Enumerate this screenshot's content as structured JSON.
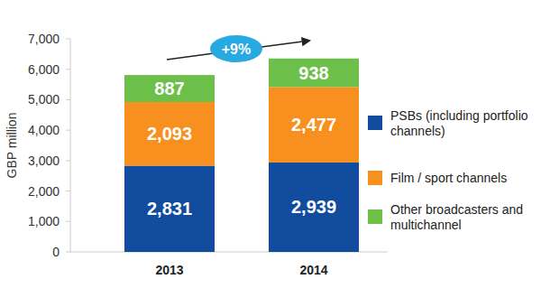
{
  "chart_data": {
    "type": "bar",
    "stacked": true,
    "data_labels": true,
    "grid": false,
    "legend": "right",
    "y_label": "GBP million",
    "annotation": "+9%",
    "categories": [
      "2013",
      "2014"
    ],
    "ylim": [
      0,
      7000
    ],
    "yticks": [
      0,
      {
        "value": 1000,
        "label": "1,000"
      },
      {
        "value": 2000,
        "label": "2,000"
      },
      {
        "value": 3000,
        "label": "3,000"
      },
      {
        "value": 4000,
        "label": "4,000"
      },
      {
        "value": 5000,
        "label": "5,000"
      },
      {
        "value": 6000,
        "label": "6,000"
      },
      {
        "value": 7000,
        "label": "7,000"
      }
    ],
    "series": [
      {
        "name": "PSBs (including portfolio channels)",
        "color": "#114c9f",
        "values": [
          2831,
          2939
        ],
        "value_labels": [
          "2,831",
          "2,939"
        ]
      },
      {
        "name": "Film / sport channels",
        "color": "#f7901e",
        "values": [
          2093,
          2477
        ],
        "value_labels": [
          "2,093",
          "2,477"
        ]
      },
      {
        "name": "Other broadcasters and multichannel",
        "color": "#6cc04a",
        "values": [
          887,
          938
        ],
        "value_labels": [
          "887",
          "938"
        ]
      }
    ]
  }
}
